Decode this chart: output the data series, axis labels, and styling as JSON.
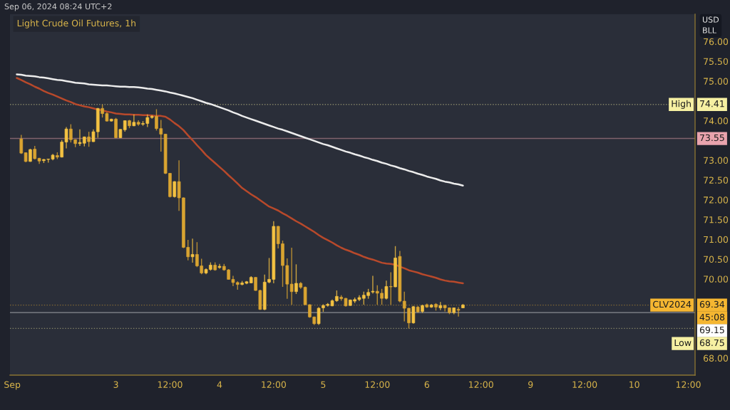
{
  "chart_data": {
    "type": "candlestick",
    "title": "Light Crude Oil Futures, 1h",
    "ylabel": "USD\nBLL",
    "annotations": [
      "Sep 06, 2024 08:24 UTC+2",
      "45:08",
      {
        "text": "High",
        "y": 74.41
      },
      {
        "text": "CLV2024",
        "y": 69.34
      },
      {
        "text": "Low",
        "y": 68.75
      }
    ],
    "categories": [
      "Sep",
      null,
      null,
      null,
      null,
      null,
      null,
      null,
      null,
      null,
      null,
      null,
      null,
      null,
      null,
      null,
      null,
      null,
      null,
      null,
      null,
      null,
      null,
      "3",
      null,
      null,
      null,
      null,
      null,
      null,
      null,
      null,
      null,
      null,
      null,
      "12:00",
      null,
      null,
      null,
      null,
      null,
      null,
      null,
      null,
      null,
      null,
      "4",
      null,
      null,
      null,
      null,
      null,
      null,
      null,
      null,
      null,
      null,
      null,
      "12:00",
      null,
      null,
      null,
      null,
      null,
      null,
      null,
      null,
      null,
      null,
      "5",
      null,
      null,
      null,
      null,
      null,
      null,
      null,
      null,
      null,
      null,
      null,
      "12:00",
      null,
      null,
      null,
      null,
      null,
      null,
      null,
      null,
      null,
      null,
      "6",
      null,
      null,
      null,
      null,
      null,
      null,
      null,
      null,
      null,
      null,
      null,
      "12:00",
      null,
      null,
      null,
      null,
      null,
      null,
      null,
      null,
      null,
      null,
      "9",
      null,
      null,
      null,
      null,
      null,
      null,
      null,
      null,
      null,
      null,
      null,
      "12:00",
      null,
      null,
      null,
      null,
      null,
      null,
      null,
      null,
      null,
      null,
      "10",
      null,
      null,
      null,
      null,
      null,
      null,
      null,
      null,
      null,
      null,
      null,
      "12:00",
      null
    ],
    "ohlc": [
      null,
      null,
      [
        73.54,
        73.64,
        73.16,
        73.18
      ],
      [
        73.19,
        73.2,
        72.95,
        72.97
      ],
      [
        72.97,
        73.29,
        72.96,
        73.27
      ],
      [
        73.28,
        73.36,
        73.02,
        73.04
      ],
      [
        73.05,
        73.06,
        72.91,
        72.98
      ],
      [
        72.99,
        73.03,
        72.93,
        73.02
      ],
      [
        73.02,
        73.04,
        72.94,
        73.03
      ],
      [
        73.03,
        73.16,
        73.0,
        73.13
      ],
      [
        73.12,
        73.2,
        73.03,
        73.08
      ],
      [
        73.08,
        73.51,
        73.07,
        73.46
      ],
      [
        73.46,
        73.84,
        73.3,
        73.79
      ],
      [
        73.79,
        73.91,
        73.45,
        73.52
      ],
      [
        73.52,
        73.53,
        73.33,
        73.42
      ],
      [
        73.42,
        73.78,
        73.36,
        73.45
      ],
      [
        73.43,
        73.6,
        73.35,
        73.59
      ],
      [
        73.59,
        73.72,
        73.34,
        73.47
      ],
      [
        73.47,
        73.78,
        73.46,
        73.72
      ],
      [
        73.72,
        74.32,
        73.57,
        74.31
      ],
      [
        74.31,
        74.41,
        74.08,
        74.18
      ],
      [
        74.18,
        74.21,
        73.98,
        73.99
      ],
      [
        73.99,
        74.05,
        73.98,
        74.04
      ],
      [
        74.04,
        74.07,
        73.56,
        73.57
      ],
      [
        73.57,
        73.79,
        73.56,
        73.78
      ],
      [
        73.77,
        74.01,
        73.72,
        74.0
      ],
      [
        74.0,
        74.02,
        73.81,
        73.87
      ],
      [
        73.87,
        74.16,
        73.86,
        73.96
      ],
      [
        73.96,
        74.01,
        73.87,
        73.91
      ],
      [
        73.91,
        73.99,
        73.87,
        73.93
      ],
      [
        73.93,
        74.16,
        73.84,
        74.08
      ],
      [
        74.08,
        74.14,
        74.05,
        74.11
      ],
      [
        74.11,
        74.29,
        73.75,
        73.8
      ],
      [
        73.8,
        74.02,
        73.22,
        73.66
      ],
      [
        73.66,
        73.67,
        72.65,
        72.67
      ],
      [
        72.67,
        72.68,
        72.06,
        72.08
      ],
      [
        72.08,
        72.47,
        72.06,
        72.46
      ],
      [
        72.46,
        73.0,
        71.72,
        72.05
      ],
      [
        72.05,
        72.06,
        70.78,
        70.8
      ],
      [
        70.8,
        70.99,
        70.47,
        70.56
      ],
      [
        70.56,
        71.02,
        70.41,
        70.62
      ],
      [
        70.62,
        70.93,
        70.3,
        70.33
      ],
      [
        70.33,
        70.51,
        70.12,
        70.15
      ],
      [
        70.15,
        70.27,
        70.12,
        70.24
      ],
      [
        70.24,
        70.42,
        70.21,
        70.35
      ],
      [
        70.35,
        70.42,
        70.21,
        70.23
      ],
      [
        70.29,
        70.38,
        70.26,
        70.32
      ],
      [
        70.32,
        70.38,
        70.21,
        70.23
      ],
      [
        70.23,
        70.25,
        69.98,
        69.99
      ],
      [
        69.99,
        70.08,
        69.82,
        69.91
      ],
      [
        69.91,
        69.94,
        69.73,
        69.86
      ],
      [
        69.86,
        69.95,
        69.84,
        69.9
      ],
      [
        69.89,
        69.95,
        69.87,
        69.93
      ],
      [
        69.9,
        70.07,
        69.89,
        70.04
      ],
      [
        70.04,
        70.05,
        69.7,
        69.71
      ],
      [
        69.71,
        69.73,
        69.22,
        69.23
      ],
      [
        69.23,
        70.11,
        69.21,
        69.92
      ],
      [
        69.92,
        70.53,
        69.89,
        69.99
      ],
      [
        69.99,
        71.46,
        69.89,
        71.33
      ],
      [
        71.33,
        71.34,
        70.77,
        70.89
      ],
      [
        70.89,
        70.97,
        69.8,
        70.34
      ],
      [
        70.34,
        70.52,
        69.5,
        69.87
      ],
      [
        69.87,
        70.79,
        69.35,
        69.68
      ],
      [
        69.68,
        70.37,
        69.62,
        69.89
      ],
      [
        69.89,
        69.92,
        69.75,
        69.79
      ],
      [
        69.79,
        69.81,
        69.34,
        69.35
      ],
      [
        69.35,
        69.36,
        69.02,
        69.04
      ],
      [
        69.04,
        69.05,
        68.84,
        68.87
      ],
      [
        68.87,
        69.29,
        68.84,
        69.26
      ],
      [
        69.27,
        69.36,
        69.17,
        69.33
      ],
      [
        69.33,
        69.39,
        69.3,
        69.36
      ],
      [
        69.32,
        69.48,
        69.31,
        69.45
      ],
      [
        69.45,
        69.71,
        69.42,
        69.56
      ],
      [
        69.54,
        69.59,
        69.45,
        69.5
      ],
      [
        69.51,
        69.52,
        69.3,
        69.32
      ],
      [
        69.33,
        69.48,
        69.32,
        69.47
      ],
      [
        69.44,
        69.53,
        69.39,
        69.48
      ],
      [
        69.48,
        69.59,
        69.44,
        69.53
      ],
      [
        69.51,
        69.68,
        69.35,
        69.59
      ],
      [
        69.58,
        69.75,
        69.5,
        69.66
      ],
      [
        69.67,
        70.08,
        69.63,
        69.69
      ],
      [
        69.69,
        69.84,
        69.35,
        69.64
      ],
      [
        69.64,
        69.75,
        69.35,
        69.51
      ],
      [
        69.51,
        69.96,
        69.48,
        69.81
      ],
      [
        69.81,
        70.17,
        69.35,
        69.8
      ],
      [
        69.8,
        70.83,
        69.79,
        70.53
      ],
      [
        70.57,
        70.71,
        69.41,
        69.44
      ],
      [
        69.44,
        69.68,
        68.93,
        69.26
      ],
      [
        69.26,
        69.27,
        68.75,
        68.89
      ],
      [
        68.89,
        69.32,
        68.87,
        69.3
      ],
      [
        69.29,
        69.32,
        69.15,
        69.17
      ],
      [
        69.18,
        69.35,
        69.14,
        69.33
      ],
      [
        69.35,
        69.38,
        69.27,
        69.29
      ],
      [
        69.29,
        69.37,
        69.27,
        69.34
      ],
      [
        69.36,
        69.39,
        69.2,
        69.29
      ],
      [
        69.27,
        69.42,
        69.21,
        69.33
      ],
      [
        69.33,
        69.35,
        69.18,
        69.27
      ],
      [
        69.27,
        69.28,
        69.11,
        69.15
      ],
      [
        69.15,
        69.28,
        69.11,
        69.27
      ],
      [
        69.23,
        69.29,
        69.05,
        69.21
      ],
      [
        69.27,
        69.37,
        69.26,
        69.34
      ],
      null,
      null,
      null,
      null,
      null,
      null,
      null,
      null,
      null,
      null,
      null,
      null,
      null,
      null,
      null,
      null,
      null,
      null,
      null,
      null,
      null,
      null,
      null,
      null,
      null,
      null,
      null,
      null,
      null,
      null,
      null,
      null,
      null,
      null,
      null,
      null,
      null,
      null,
      null,
      null,
      null,
      null,
      null,
      null,
      null,
      null,
      null,
      null,
      null,
      null,
      null
    ],
    "colors": [
      null,
      null,
      "#d9a431",
      "#d9a431",
      "#f4c242",
      "#d9a431",
      "#d9a431",
      "#f4c242",
      "#f4c242",
      "#f4c242",
      "#d9a431",
      "#f4c242",
      "#f4c242",
      "#d9a431",
      "#d9a431",
      "#f4c242",
      "#f4c242",
      "#d9a431",
      "#f4c242",
      "#f4c242",
      "#d9a431",
      "#d9a431",
      "#f4c242",
      "#d9a431",
      "#f4c242",
      "#f4c242",
      "#d9a431",
      "#f4c242",
      "#d9a431",
      "#f4c242",
      "#f4c242",
      "#f4c242",
      "#d9a431",
      "#d9a431",
      "#d9a431",
      "#d9a431",
      "#f4c242",
      "#d9a431",
      "#d9a431",
      "#d9a431",
      "#f4c242",
      "#d9a431",
      "#d9a431",
      "#f4c242",
      "#f4c242",
      "#d9a431",
      "#f4c242",
      "#d9a431",
      "#d9a431",
      "#d9a431",
      "#d9a431",
      "#f4c242",
      "#f4c242",
      "#f4c242",
      "#d9a431",
      "#d9a431",
      "#f4c242",
      "#f4c242",
      "#f4c242",
      "#d9a431",
      "#d9a431",
      "#d9a431",
      "#d9a431",
      "#f4c242",
      "#d9a431",
      "#d9a431",
      "#d9a431",
      "#d9a431",
      "#f4c242",
      "#f4c242",
      "#f4c242",
      "#f4c242",
      "#f4c242",
      "#d9a431",
      "#d9a431",
      "#f4c242",
      "#f4c242",
      "#f4c242",
      "#f4c242",
      "#f4c242",
      "#f4c242",
      "#d9a431",
      "#d9a431",
      "#f4c242",
      "#d9a431",
      "#f4c242",
      "#d9a431",
      "#d9a431",
      "#d9a431",
      "#f4c242",
      "#d9a431",
      "#f4c242",
      "#d9a431",
      "#f4c242",
      "#d9a431",
      "#f4c242",
      "#d9a431",
      "#d9a431",
      "#f4c242",
      "#d9a431",
      "#f4c242",
      null,
      null,
      null,
      null,
      null,
      null,
      null,
      null,
      null,
      null,
      null,
      null,
      null,
      null,
      null,
      null,
      null,
      null,
      null,
      null,
      null,
      null,
      null,
      null,
      null,
      null,
      null,
      null,
      null,
      null,
      null,
      null,
      null,
      null,
      null,
      null,
      null,
      null,
      null,
      null,
      null,
      null,
      null,
      null,
      null,
      null,
      null,
      null,
      null,
      null,
      null
    ],
    "series": [
      {
        "type": "line",
        "color": "#b8492b",
        "values": [
          null,
          75.08,
          75.03,
          74.97,
          74.92,
          74.86,
          74.81,
          74.75,
          74.7,
          74.66,
          74.61,
          74.56,
          74.51,
          74.47,
          74.42,
          74.39,
          74.36,
          74.34,
          74.31,
          74.28,
          74.26,
          74.23,
          74.21,
          74.18,
          74.17,
          74.16,
          74.16,
          74.15,
          74.15,
          74.14,
          74.14,
          74.13,
          74.12,
          74.12,
          74.1,
          74.03,
          73.94,
          73.86,
          73.76,
          73.63,
          73.51,
          73.38,
          73.26,
          73.13,
          73.03,
          72.93,
          72.83,
          72.73,
          72.62,
          72.52,
          72.41,
          72.3,
          72.22,
          72.14,
          72.07,
          71.99,
          71.91,
          71.83,
          71.78,
          71.73,
          71.66,
          71.6,
          71.53,
          71.46,
          71.4,
          71.33,
          71.26,
          71.19,
          71.11,
          71.04,
          70.98,
          70.92,
          70.85,
          70.79,
          70.74,
          70.7,
          70.65,
          70.61,
          70.56,
          70.52,
          70.49,
          70.45,
          70.41,
          70.39,
          70.38,
          70.36,
          70.31,
          70.27,
          70.22,
          70.19,
          70.16,
          70.12,
          70.09,
          70.06,
          70.03,
          69.99,
          69.96,
          69.94,
          69.93,
          69.91,
          69.89,
          null,
          null,
          null,
          null,
          null,
          null,
          null,
          null,
          null,
          null,
          null,
          null,
          null,
          null,
          null,
          null,
          null,
          null,
          null,
          null,
          null,
          null,
          null,
          null,
          null,
          null,
          null,
          null,
          null,
          null,
          null,
          null,
          null,
          null,
          null,
          null,
          null,
          null,
          null,
          null,
          null,
          null,
          null,
          null,
          null,
          null,
          null,
          null,
          null,
          null,
          null
        ]
      },
      {
        "type": "line",
        "color": "#ececec",
        "values": [
          null,
          75.17,
          75.16,
          75.14,
          75.13,
          75.12,
          75.1,
          75.09,
          75.07,
          75.05,
          75.03,
          75.02,
          75.0,
          74.98,
          74.96,
          74.95,
          74.94,
          74.92,
          74.91,
          74.9,
          74.89,
          74.89,
          74.88,
          74.87,
          74.86,
          74.86,
          74.85,
          74.85,
          74.84,
          74.83,
          74.81,
          74.8,
          74.78,
          74.76,
          74.74,
          74.71,
          74.69,
          74.66,
          74.63,
          74.6,
          74.57,
          74.53,
          74.49,
          74.45,
          74.42,
          74.38,
          74.34,
          74.3,
          74.26,
          74.21,
          74.17,
          74.12,
          74.08,
          74.04,
          74.0,
          73.96,
          73.92,
          73.88,
          73.84,
          73.8,
          73.77,
          73.73,
          73.69,
          73.65,
          73.61,
          73.57,
          73.53,
          73.49,
          73.45,
          73.41,
          73.38,
          73.34,
          73.3,
          73.26,
          73.22,
          73.19,
          73.15,
          73.12,
          73.08,
          73.05,
          73.01,
          72.98,
          72.94,
          72.91,
          72.87,
          72.84,
          72.8,
          72.77,
          72.73,
          72.7,
          72.66,
          72.63,
          72.59,
          72.56,
          72.53,
          72.49,
          72.46,
          72.44,
          72.41,
          72.39,
          72.36,
          null,
          null,
          null,
          null,
          null,
          null,
          null,
          null,
          null,
          null,
          null,
          null,
          null,
          null,
          null,
          null,
          null,
          null,
          null,
          null,
          null,
          null,
          null,
          null,
          null,
          null,
          null,
          null,
          null,
          null,
          null,
          null,
          null,
          null,
          null,
          null,
          null,
          null,
          null,
          null,
          null,
          null,
          null,
          null,
          null,
          null,
          null,
          null,
          null,
          null,
          null
        ]
      }
    ],
    "ref_lines": [
      {
        "axis": "y",
        "value": 74.41,
        "label": "74.41",
        "color": "#f6f0a2",
        "line_style": "dotted"
      },
      {
        "axis": "y",
        "value": 73.55,
        "label": "73.55",
        "color": "#e9a3ad",
        "line_style": "solid"
      },
      {
        "axis": "y",
        "value": 69.34,
        "label": "69.34",
        "color": "#f5b631",
        "line_style": "dotted"
      },
      {
        "axis": "y",
        "value": 69.15,
        "label": "69.15",
        "color": "#ffffff",
        "line_style": "solid"
      },
      {
        "axis": "y",
        "value": 68.75,
        "label": "68.75",
        "color": "#f6f0a2",
        "line_style": "dotted"
      }
    ],
    "ylim": [
      67.57,
      76.69
    ],
    "yticks": [
      {
        "value": 68,
        "label": "68.00"
      },
      {
        "value": 70,
        "label": "70.00"
      },
      {
        "value": 70.5,
        "label": "70.50"
      },
      {
        "value": 71,
        "label": "71.00"
      },
      {
        "value": 71.5,
        "label": "71.50"
      },
      {
        "value": 72,
        "label": "72.00"
      },
      {
        "value": 72.5,
        "label": "72.50"
      },
      {
        "value": 73,
        "label": "73.00"
      },
      {
        "value": 74,
        "label": "74.00"
      },
      {
        "value": 75,
        "label": "75.00"
      },
      {
        "value": 75.5,
        "label": "75.50"
      },
      {
        "value": 76,
        "label": "76.00"
      }
    ]
  }
}
